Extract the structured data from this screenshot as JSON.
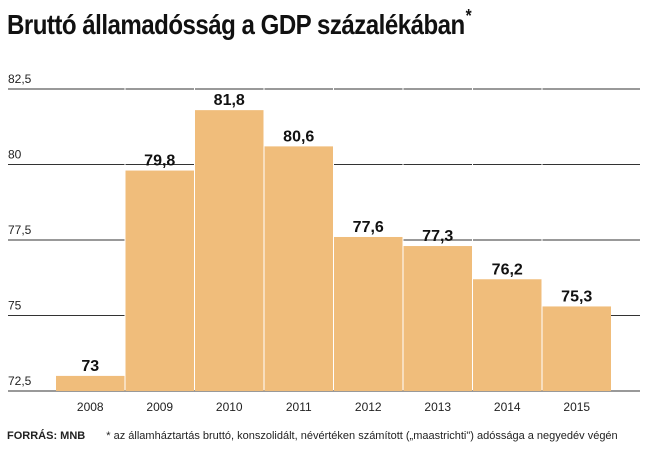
{
  "title": "Bruttó államadósság a GDP százalékában",
  "title_mark": "*",
  "chart_data": {
    "type": "bar",
    "categories": [
      "2008",
      "2009",
      "2010",
      "2011",
      "2012",
      "2013",
      "2014",
      "2015"
    ],
    "values": [
      73,
      79.8,
      81.8,
      80.6,
      77.6,
      77.3,
      76.2,
      75.3
    ],
    "value_labels": [
      "73",
      "79,8",
      "81,8",
      "80,6",
      "77,6",
      "77,3",
      "76,2",
      "75,3"
    ],
    "y_ticks": [
      72.5,
      75,
      77.5,
      80,
      82.5
    ],
    "y_tick_labels": [
      "72,5",
      "75",
      "77,5",
      "80",
      "82,5"
    ],
    "ylim": [
      72.5,
      82.5
    ],
    "grid": true,
    "xlabel": "",
    "ylabel": "",
    "bar_color": "#f0bd7b",
    "grid_color": "#333333"
  },
  "footer": {
    "source": "FORRÁS: MNB",
    "note": "* az államháztartás bruttó, konszolidált, névértéken számított („maastrichti\") adóssága a negyedév végén"
  }
}
